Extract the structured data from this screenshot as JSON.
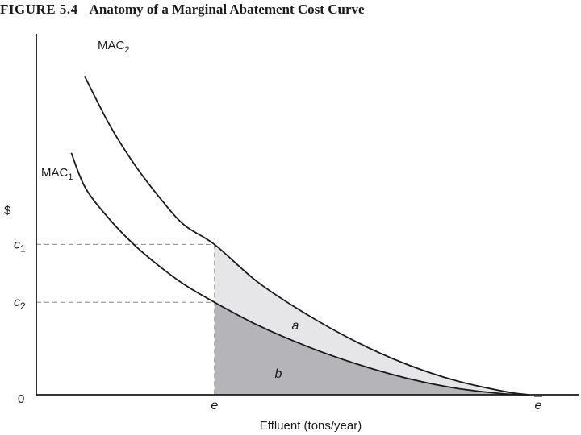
{
  "figure": {
    "number": "FIGURE 5.4",
    "title": "Anatomy of a Marginal Abatement Cost Curve"
  },
  "chart_data": {
    "type": "line",
    "title": "Anatomy of a Marginal Abatement Cost Curve",
    "xlabel": "Effluent (tons/year)",
    "ylabel": "$",
    "origin_label": "0",
    "x_ticks": [
      {
        "label": "e",
        "value": 0.362,
        "italic": true
      },
      {
        "label": "e",
        "value": 1.0,
        "italic": true,
        "overbar": true
      }
    ],
    "y_ticks": [
      {
        "label": "c",
        "sub": "1",
        "value": 0.491
      },
      {
        "label": "c",
        "sub": "2",
        "value": 0.302
      }
    ],
    "xlim": [
      0,
      1.12
    ],
    "ylim": [
      0,
      1.08
    ],
    "grid": false,
    "series": [
      {
        "name": "MAC",
        "name_sub": "1",
        "color": "#1a1a1a",
        "x": [
          0.071,
          0.1,
          0.15,
          0.2,
          0.25,
          0.3,
          0.362,
          0.45,
          0.55,
          0.65,
          0.75,
          0.85,
          0.95,
          1.0
        ],
        "y": [
          0.79,
          0.675,
          0.571,
          0.488,
          0.42,
          0.361,
          0.302,
          0.227,
          0.158,
          0.101,
          0.055,
          0.022,
          0.003,
          0.0
        ]
      },
      {
        "name": "MAC",
        "name_sub": "2",
        "color": "#1a1a1a",
        "x": [
          0.098,
          0.15,
          0.2,
          0.25,
          0.3,
          0.362,
          0.45,
          0.55,
          0.65,
          0.75,
          0.85,
          0.95,
          1.0
        ],
        "y": [
          1.041,
          0.878,
          0.751,
          0.645,
          0.555,
          0.491,
          0.368,
          0.262,
          0.173,
          0.101,
          0.047,
          0.011,
          0.0
        ]
      }
    ],
    "regions": [
      {
        "label": "a",
        "between": [
          "MAC_1",
          "MAC_2"
        ],
        "x_from": 0.362,
        "x_to": 1.0,
        "color": "#e6e6e8"
      },
      {
        "label": "b",
        "between": [
          "axis",
          "MAC_1"
        ],
        "x_from": 0.362,
        "x_to": 1.0,
        "color": "#b5b5b9"
      }
    ],
    "reference_lines": [
      {
        "type": "dashed",
        "at": "c1 to e on MAC_2"
      },
      {
        "type": "dashed",
        "at": "c2 to MAC_1"
      }
    ]
  }
}
